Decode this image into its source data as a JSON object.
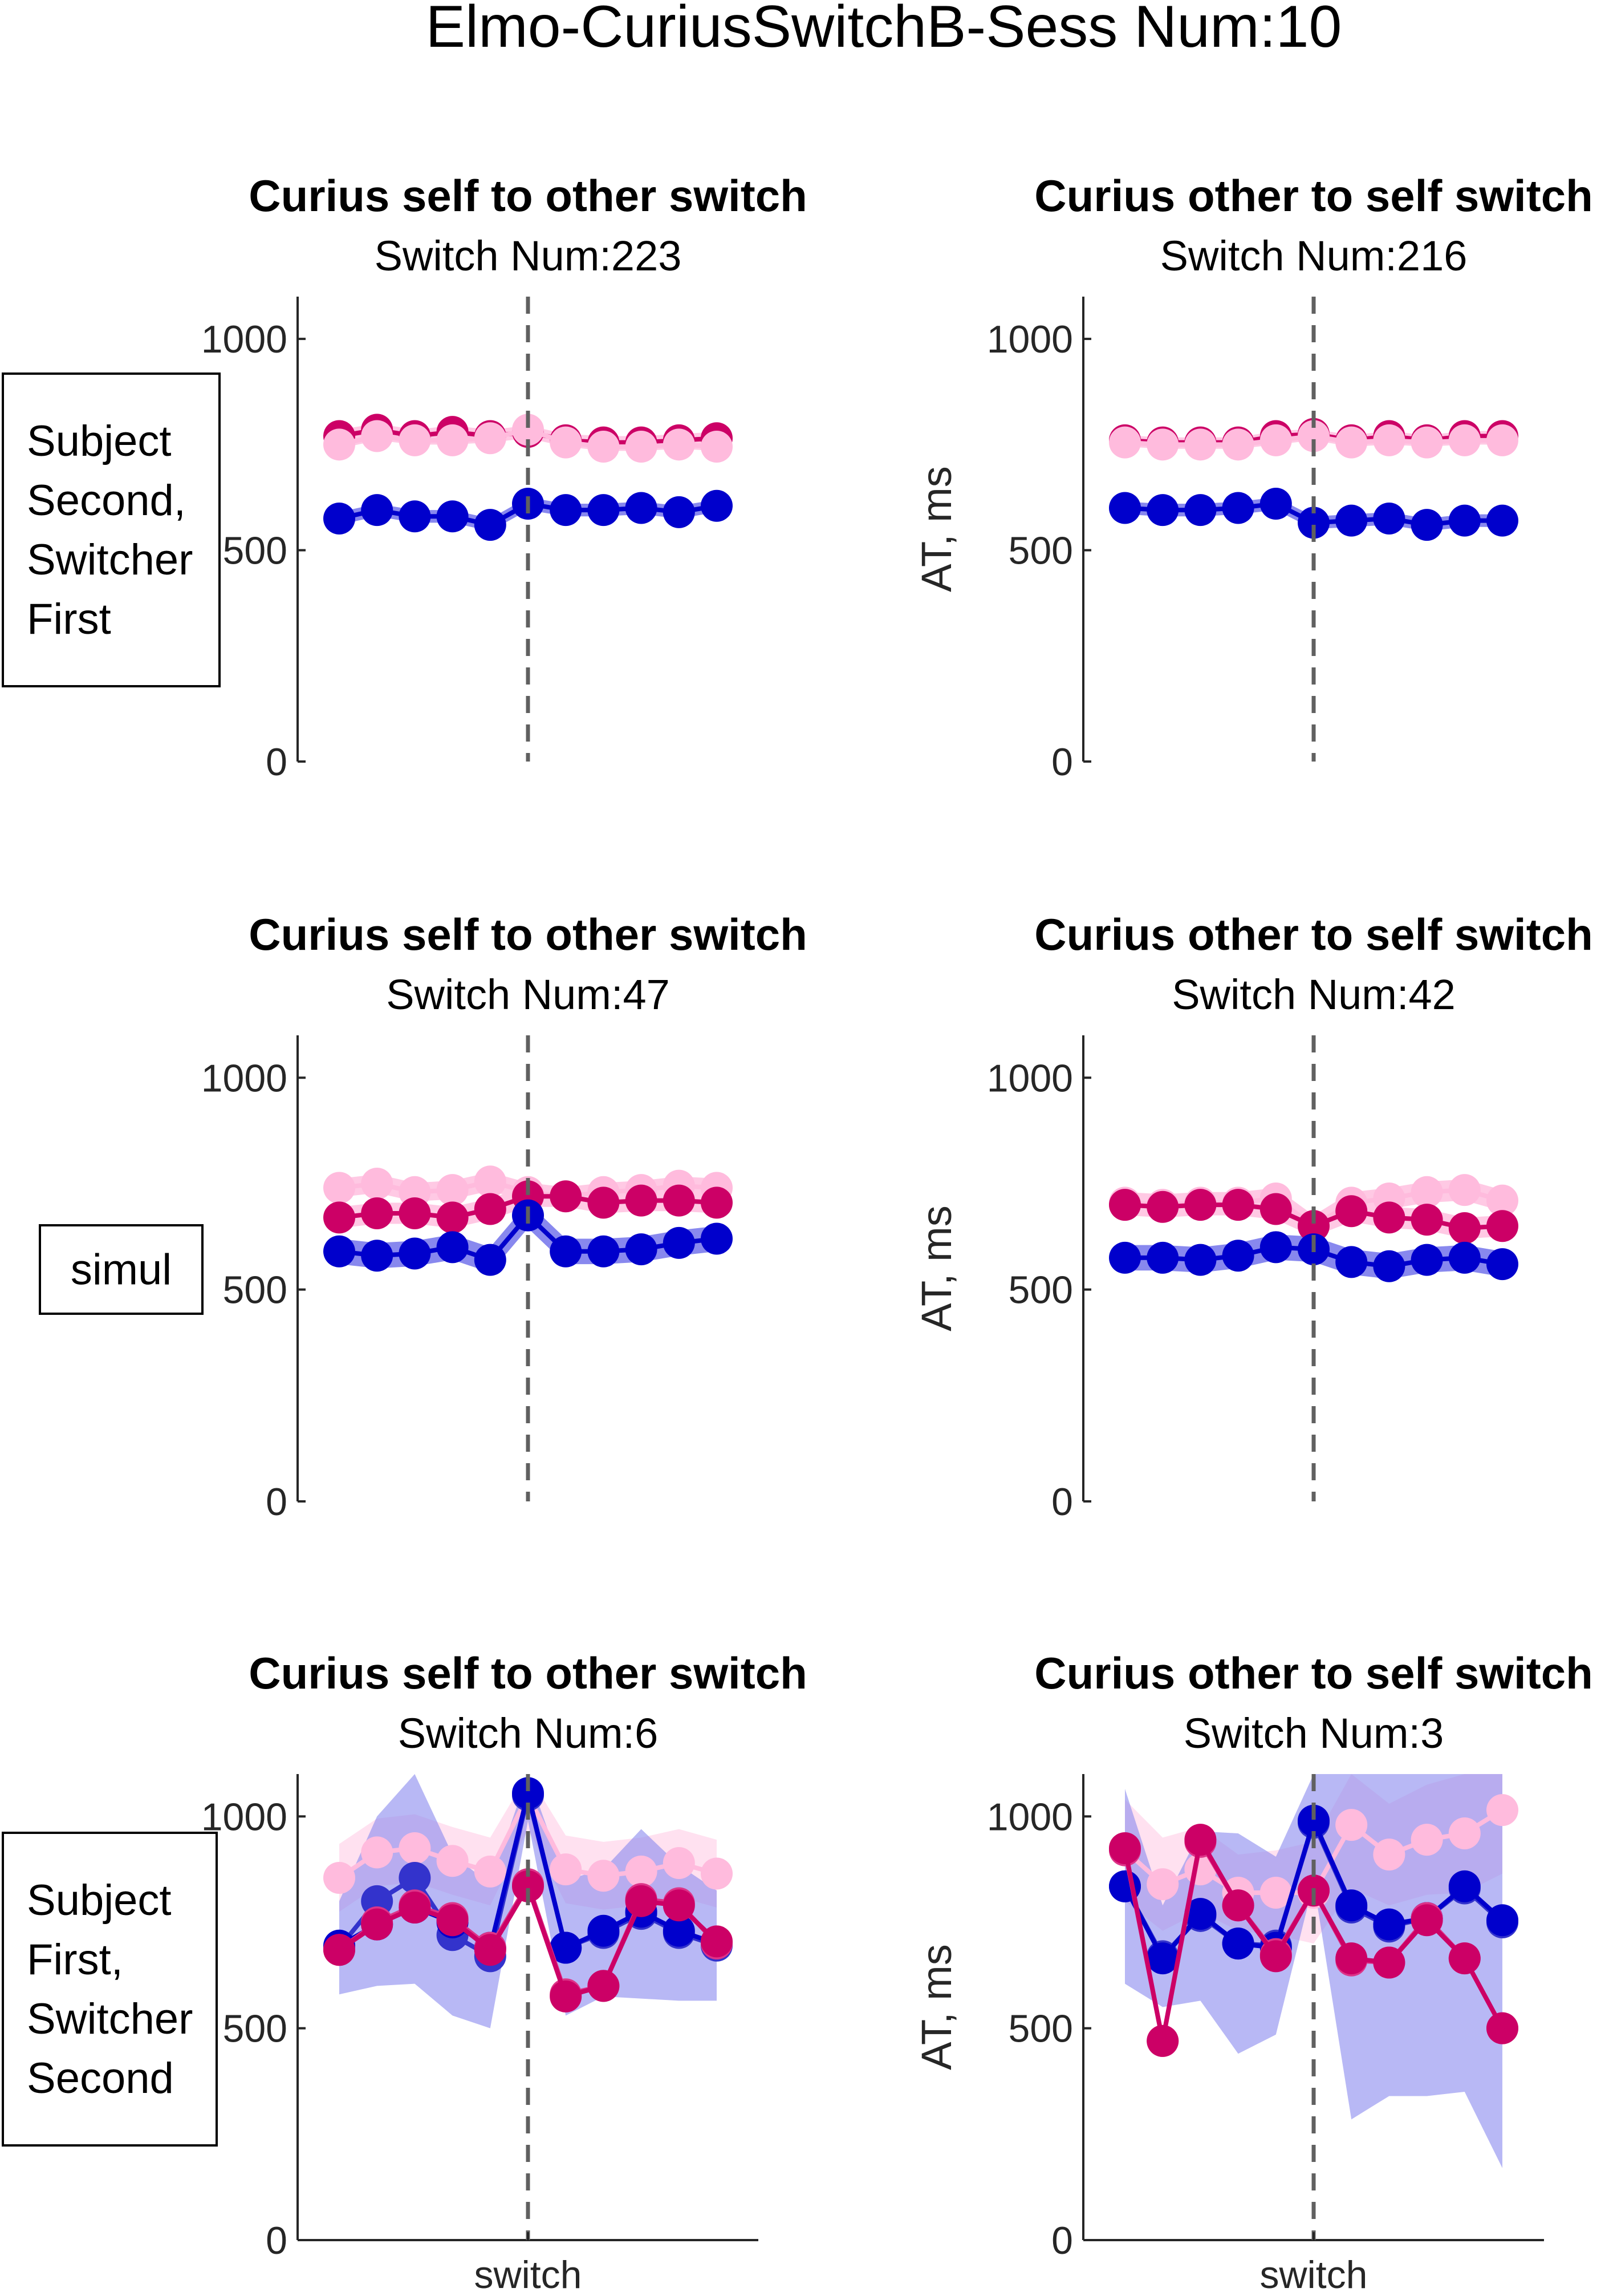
{
  "title": "Elmo-CuriusSwitchB-Sess Num:10",
  "colors": {
    "blue": "#0000cc",
    "blue_mid": "#3333cc",
    "magenta": "#cc0066",
    "magenta_mid": "#dd3388",
    "pink": "#ffbbdd",
    "band_blue": "#8888ee",
    "band_pink": "#ffc9e4"
  },
  "rows": [
    {
      "label_lines": [
        "Subject",
        "Second,",
        "Switcher",
        "First"
      ]
    },
    {
      "label_lines": [
        "simul"
      ]
    },
    {
      "label_lines": [
        "Subject",
        "First,",
        "Switcher",
        "Second"
      ]
    }
  ],
  "chart_data": [
    {
      "type": "line",
      "row": 0,
      "col": 0,
      "title": "Curius self to other switch",
      "subtitle": "Switch Num:223",
      "ylabel": "",
      "xlabel": "",
      "x_tick_label": "",
      "ylim": [
        0,
        1100
      ],
      "yticks": [
        0,
        500,
        1000
      ],
      "switch_index": 5,
      "series": [
        {
          "color": "magenta",
          "values": [
            770,
            785,
            770,
            780,
            770,
            780,
            760,
            755,
            755,
            760,
            765
          ],
          "band": [
            15,
            15,
            15,
            15,
            15,
            15,
            15,
            15,
            15,
            15,
            15
          ],
          "band_color": "band_pink",
          "alpha": 1.0
        },
        {
          "color": "pink",
          "values": [
            750,
            770,
            760,
            760,
            765,
            785,
            755,
            745,
            745,
            750,
            745
          ],
          "band": [
            10,
            10,
            10,
            10,
            10,
            10,
            10,
            10,
            10,
            10,
            10
          ],
          "band_color": "band_pink",
          "alpha": 1.0
        },
        {
          "color": "blue",
          "values": [
            575,
            595,
            580,
            580,
            560,
            610,
            595,
            595,
            600,
            590,
            605
          ],
          "band": [
            15,
            15,
            15,
            15,
            15,
            15,
            15,
            15,
            15,
            15,
            15
          ],
          "band_color": "band_blue",
          "alpha": 1.0
        }
      ]
    },
    {
      "type": "line",
      "row": 0,
      "col": 1,
      "title": "Curius other to self switch",
      "subtitle": "Switch Num:216",
      "ylabel": "AT, ms",
      "xlabel": "",
      "x_tick_label": "",
      "ylim": [
        0,
        1100
      ],
      "yticks": [
        0,
        500,
        1000
      ],
      "switch_index": 5,
      "series": [
        {
          "color": "magenta",
          "values": [
            760,
            755,
            755,
            755,
            770,
            775,
            760,
            770,
            760,
            770,
            770
          ],
          "band": [
            12,
            12,
            12,
            12,
            12,
            12,
            12,
            12,
            12,
            12,
            12
          ],
          "band_color": "band_pink",
          "alpha": 1.0
        },
        {
          "color": "pink",
          "values": [
            755,
            750,
            750,
            750,
            760,
            770,
            755,
            760,
            755,
            760,
            760
          ],
          "band": [
            10,
            10,
            10,
            10,
            10,
            10,
            10,
            10,
            10,
            10,
            10
          ],
          "band_color": "band_pink",
          "alpha": 1.0
        },
        {
          "color": "blue",
          "values": [
            600,
            595,
            595,
            600,
            610,
            565,
            570,
            575,
            560,
            570,
            570
          ],
          "band": [
            15,
            15,
            15,
            15,
            15,
            15,
            15,
            15,
            15,
            15,
            15
          ],
          "band_color": "band_blue",
          "alpha": 1.0
        }
      ]
    },
    {
      "type": "line",
      "row": 1,
      "col": 0,
      "title": "Curius self to other switch",
      "subtitle": "Switch Num:47",
      "ylabel": "",
      "xlabel": "",
      "x_tick_label": "",
      "ylim": [
        0,
        1100
      ],
      "yticks": [
        0,
        500,
        1000
      ],
      "switch_index": 5,
      "series": [
        {
          "color": "pink",
          "values": [
            740,
            750,
            730,
            735,
            755,
            730,
            720,
            730,
            735,
            745,
            740
          ],
          "band": [
            22,
            22,
            22,
            22,
            22,
            22,
            22,
            22,
            22,
            22,
            22
          ],
          "band_color": "band_pink",
          "alpha": 1.0
        },
        {
          "color": "magenta",
          "values": [
            670,
            680,
            680,
            670,
            690,
            720,
            720,
            705,
            710,
            710,
            705
          ],
          "band": [
            25,
            25,
            25,
            25,
            25,
            25,
            25,
            25,
            25,
            25,
            25
          ],
          "band_color": "band_pink",
          "alpha": 1.0
        },
        {
          "color": "blue",
          "values": [
            590,
            580,
            585,
            600,
            570,
            675,
            590,
            590,
            595,
            610,
            620
          ],
          "band": [
            30,
            30,
            30,
            30,
            30,
            30,
            30,
            30,
            30,
            30,
            30
          ],
          "band_color": "band_blue",
          "alpha": 1.0
        }
      ]
    },
    {
      "type": "line",
      "row": 1,
      "col": 1,
      "title": "Curius other to self switch",
      "subtitle": "Switch Num:42",
      "ylabel": "AT, ms",
      "xlabel": "",
      "x_tick_label": "",
      "ylim": [
        0,
        1100
      ],
      "yticks": [
        0,
        500,
        1000
      ],
      "switch_index": 5,
      "series": [
        {
          "color": "pink",
          "values": [
            705,
            700,
            705,
            705,
            715,
            650,
            705,
            715,
            730,
            735,
            710
          ],
          "band": [
            25,
            25,
            25,
            25,
            25,
            25,
            25,
            25,
            25,
            25,
            25
          ],
          "band_color": "band_pink",
          "alpha": 1.0
        },
        {
          "color": "magenta",
          "values": [
            700,
            695,
            700,
            700,
            690,
            650,
            685,
            670,
            665,
            645,
            650
          ],
          "band": [
            25,
            25,
            25,
            25,
            25,
            25,
            25,
            25,
            25,
            25,
            25
          ],
          "band_color": "band_pink",
          "alpha": 1.0
        },
        {
          "color": "blue",
          "values": [
            575,
            575,
            570,
            580,
            600,
            595,
            565,
            555,
            570,
            575,
            560
          ],
          "band": [
            30,
            30,
            30,
            30,
            30,
            30,
            30,
            30,
            30,
            30,
            30
          ],
          "band_color": "band_blue",
          "alpha": 1.0
        }
      ]
    },
    {
      "type": "line",
      "row": 2,
      "col": 0,
      "title": "Curius self to other switch",
      "subtitle": "Switch Num:6",
      "ylabel": "",
      "xlabel": "",
      "x_tick_label": "switch",
      "ylim": [
        0,
        1100
      ],
      "yticks": [
        0,
        500,
        1000
      ],
      "switch_index": 5,
      "series": [
        {
          "color": "pink",
          "values": [
            855,
            915,
            925,
            895,
            870,
            1050,
            875,
            860,
            870,
            890,
            865
          ],
          "band": [
            80,
            80,
            80,
            80,
            80,
            80,
            80,
            80,
            80,
            80,
            80
          ],
          "band_color": "band_pink",
          "alpha": 0.55
        },
        {
          "color": "blue_mid",
          "values": [
            690,
            800,
            855,
            720,
            670,
            1050,
            690,
            725,
            770,
            725,
            695
          ],
          "band": [
            110,
            200,
            250,
            190,
            170,
            60,
            160,
            150,
            200,
            160,
            130
          ],
          "band_color": "band_blue",
          "alpha": 0.6
        },
        {
          "color": "blue",
          "values": [
            695,
            745,
            785,
            750,
            690,
            1055,
            690,
            730,
            775,
            730,
            700
          ],
          "band": [
            30,
            30,
            30,
            30,
            30,
            30,
            30,
            30,
            30,
            30,
            30
          ],
          "band_color": "band_blue",
          "alpha": 0.0
        },
        {
          "color": "magenta_mid",
          "values": [
            685,
            750,
            790,
            760,
            690,
            840,
            580,
            600,
            805,
            795,
            700
          ],
          "band": [
            30,
            30,
            30,
            30,
            30,
            30,
            30,
            30,
            30,
            30,
            30
          ],
          "band_color": "band_pink",
          "alpha": 0.0
        },
        {
          "color": "magenta",
          "values": [
            685,
            745,
            785,
            755,
            685,
            835,
            575,
            600,
            800,
            790,
            705
          ],
          "band": [
            30,
            30,
            30,
            30,
            30,
            30,
            30,
            30,
            30,
            30,
            30
          ],
          "band_color": "band_pink",
          "alpha": 0.0
        }
      ]
    },
    {
      "type": "line",
      "row": 2,
      "col": 1,
      "title": "Curius other to self switch",
      "subtitle": "Switch Num:3",
      "ylabel": "AT, ms",
      "xlabel": "",
      "x_tick_label": "switch",
      "ylim": [
        0,
        1100
      ],
      "yticks": [
        0,
        500,
        1000
      ],
      "switch_index": 5,
      "series": [
        {
          "color": "pink",
          "values": [
            920,
            840,
            875,
            820,
            820,
            820,
            980,
            910,
            945,
            960,
            1015
          ],
          "band": [
            120,
            110,
            100,
            90,
            100,
            120,
            150,
            120,
            130,
            140,
            150
          ],
          "band_color": "band_pink",
          "alpha": 0.55
        },
        {
          "color": "blue_mid",
          "values": [
            835,
            670,
            765,
            700,
            695,
            985,
            785,
            740,
            760,
            830,
            750
          ],
          "band": [
            230,
            120,
            200,
            260,
            210,
            140,
            500,
            400,
            420,
            480,
            580
          ],
          "band_color": "band_blue",
          "alpha": 0.6
        },
        {
          "color": "blue",
          "values": [
            835,
            665,
            770,
            700,
            690,
            990,
            790,
            745,
            760,
            835,
            755
          ],
          "band": [
            30,
            30,
            30,
            30,
            30,
            30,
            30,
            30,
            30,
            30,
            30
          ],
          "band_color": "band_blue",
          "alpha": 0.0
        },
        {
          "color": "magenta_mid",
          "values": [
            920,
            470,
            940,
            790,
            675,
            825,
            660,
            655,
            760,
            665,
            500
          ],
          "band": [
            30,
            30,
            30,
            30,
            30,
            30,
            30,
            30,
            30,
            30,
            30
          ],
          "band_color": "band_pink",
          "alpha": 0.0
        },
        {
          "color": "magenta",
          "values": [
            925,
            470,
            945,
            790,
            670,
            825,
            665,
            655,
            755,
            665,
            500
          ],
          "band": [
            30,
            30,
            30,
            30,
            30,
            30,
            30,
            30,
            30,
            30,
            30
          ],
          "band_color": "band_pink",
          "alpha": 0.0
        }
      ]
    }
  ]
}
